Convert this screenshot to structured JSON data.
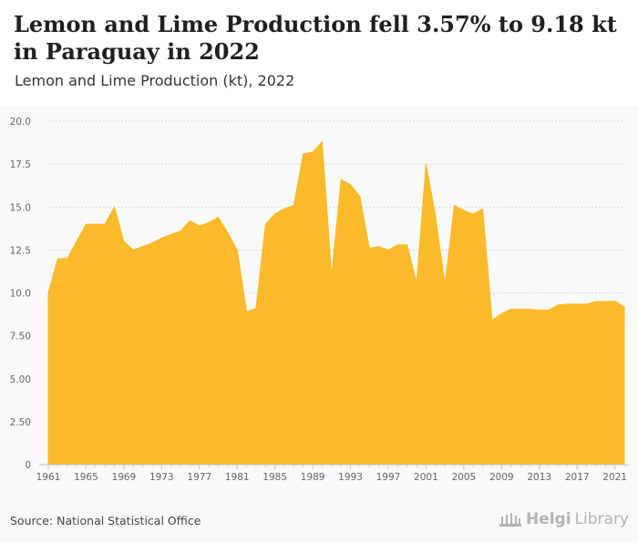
{
  "header": {
    "title": "Lemon and Lime Production fell 3.57% to 9.18 kt in Paraguay in 2022",
    "subtitle": "Lemon and Lime Production (kt), 2022"
  },
  "footer": {
    "source": "Source: National Statistical Office",
    "logo_strong": "Helgi",
    "logo_light": "Library"
  },
  "colors": {
    "area": "#fbba2a",
    "grid": "#d9d9d9",
    "axis_text": "#666666"
  },
  "chart_data": {
    "type": "area",
    "x": [
      1961,
      1962,
      1963,
      1964,
      1965,
      1966,
      1967,
      1968,
      1969,
      1970,
      1971,
      1972,
      1973,
      1974,
      1975,
      1976,
      1977,
      1978,
      1979,
      1980,
      1981,
      1982,
      1983,
      1984,
      1985,
      1986,
      1987,
      1988,
      1989,
      1990,
      1991,
      1992,
      1993,
      1994,
      1995,
      1996,
      1997,
      1998,
      1999,
      2000,
      2001,
      2002,
      2003,
      2004,
      2005,
      2006,
      2007,
      2008,
      2009,
      2010,
      2011,
      2012,
      2013,
      2014,
      2015,
      2016,
      2017,
      2018,
      2019,
      2020,
      2021,
      2022
    ],
    "values": [
      10.0,
      12.0,
      12.0,
      13.0,
      14.0,
      14.0,
      14.0,
      15.0,
      13.0,
      12.5,
      12.7,
      12.9,
      13.2,
      13.4,
      13.6,
      14.2,
      13.9,
      14.1,
      14.4,
      13.5,
      12.5,
      8.9,
      9.1,
      14.0,
      14.6,
      14.9,
      15.1,
      18.1,
      18.2,
      18.8,
      11.0,
      16.6,
      16.3,
      15.6,
      12.6,
      12.7,
      12.5,
      12.8,
      12.8,
      10.6,
      17.5,
      14.5,
      10.5,
      15.1,
      14.8,
      14.6,
      14.9,
      8.4,
      8.8,
      9.05,
      9.05,
      9.05,
      9.0,
      9.0,
      9.3,
      9.35,
      9.35,
      9.35,
      9.5,
      9.5,
      9.52,
      9.18
    ],
    "x_ticks": [
      "1961",
      "1965",
      "1969",
      "1973",
      "1977",
      "1981",
      "1985",
      "1989",
      "1993",
      "1997",
      "2001",
      "2005",
      "2009",
      "2013",
      "2017",
      "2021"
    ],
    "y_ticks": [
      "0",
      "2.50",
      "5.00",
      "7.50",
      "10.0",
      "12.5",
      "15.0",
      "17.5",
      "20.0"
    ],
    "ylim": [
      0,
      20
    ],
    "xlim": [
      1961,
      2022
    ],
    "grid": true
  }
}
